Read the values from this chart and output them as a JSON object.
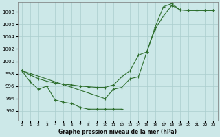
{
  "xlabel": "Graphe pression niveau de la mer (hPa)",
  "bg_color": "#cce8e8",
  "grid_color": "#aacece",
  "line_color": "#2d6e2d",
  "x_ticks": [
    0,
    1,
    2,
    3,
    4,
    5,
    6,
    7,
    8,
    9,
    10,
    11,
    12,
    13,
    14,
    15,
    16,
    17,
    18,
    19,
    20,
    21,
    22,
    23
  ],
  "y_ticks": [
    992,
    994,
    996,
    998,
    1000,
    1002,
    1004,
    1006,
    1008
  ],
  "ylim": [
    990.5,
    1009.5
  ],
  "xlim": [
    -0.5,
    23.5
  ],
  "line1_x": [
    0,
    1,
    2,
    3,
    4,
    5,
    6,
    7,
    8,
    9,
    10,
    11,
    12
  ],
  "line1_y": [
    998.5,
    996.7,
    995.5,
    996.0,
    993.8,
    993.4,
    993.2,
    992.6,
    992.3,
    992.3,
    992.3,
    992.3,
    992.3
  ],
  "line2_x": [
    0,
    1,
    2,
    3,
    4,
    5,
    6,
    7,
    8,
    9,
    10,
    11,
    12,
    13,
    14,
    15,
    16,
    17,
    18,
    19,
    20,
    21,
    22,
    23
  ],
  "line2_y": [
    998.5,
    997.8,
    997.2,
    996.8,
    996.5,
    996.3,
    996.2,
    996.0,
    995.9,
    995.8,
    995.8,
    996.2,
    997.5,
    998.5,
    1001.0,
    1001.5,
    1005.2,
    1007.3,
    1009.0,
    1008.3,
    1008.2,
    1008.2,
    1008.2,
    1008.2
  ],
  "line3_x": [
    0,
    10,
    11,
    12,
    13,
    14,
    15,
    16,
    17,
    18,
    19,
    20,
    21,
    22,
    23
  ],
  "line3_y": [
    998.5,
    994.0,
    995.5,
    995.8,
    997.2,
    997.5,
    1001.5,
    1005.5,
    1008.8,
    1009.3,
    1008.3,
    1008.2,
    1008.2,
    1008.2,
    1008.2
  ]
}
